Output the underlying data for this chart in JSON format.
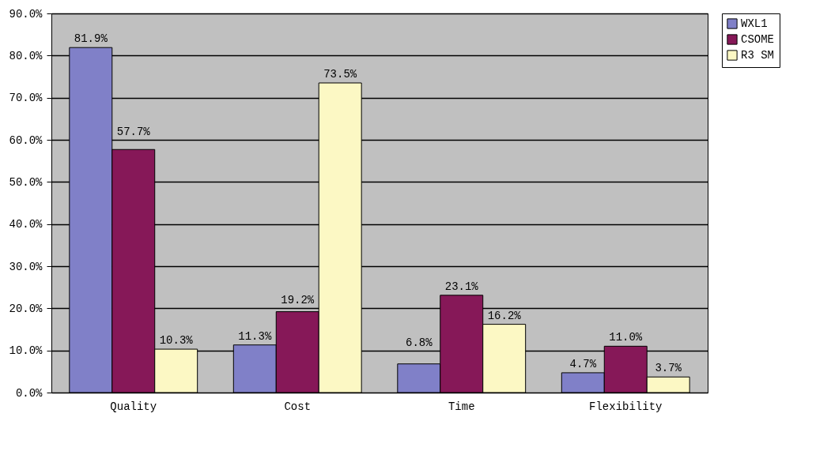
{
  "chart_data": {
    "type": "bar",
    "categories": [
      "Quality",
      "Cost",
      "Time",
      "Flexibility"
    ],
    "series": [
      {
        "name": "WXL1",
        "color": "#8080c8",
        "values": [
          81.9,
          11.3,
          6.8,
          4.7
        ],
        "value_labels": [
          "81.9%",
          "11.3%",
          "6.8%",
          "4.7%"
        ]
      },
      {
        "name": "CSOME",
        "color": "#861858",
        "values": [
          57.7,
          19.2,
          23.1,
          11.0
        ],
        "value_labels": [
          "57.7%",
          "19.2%",
          "23.1%",
          "11.0%"
        ]
      },
      {
        "name": "R3 SM",
        "color": "#fcf8c4",
        "values": [
          10.3,
          73.5,
          16.2,
          3.7
        ],
        "value_labels": [
          "10.3%",
          "73.5%",
          "16.2%",
          "3.7%"
        ]
      }
    ],
    "ylim": [
      0,
      90
    ],
    "yticks": [
      {
        "value": 0,
        "label": "0.0%"
      },
      {
        "value": 10,
        "label": "10.0%"
      },
      {
        "value": 20,
        "label": "20.0%"
      },
      {
        "value": 30,
        "label": "30.0%"
      },
      {
        "value": 40,
        "label": "40.0%"
      },
      {
        "value": 50,
        "label": "50.0%"
      },
      {
        "value": 60,
        "label": "60.0%"
      },
      {
        "value": 70,
        "label": "70.0%"
      },
      {
        "value": 80,
        "label": "80.0%"
      },
      {
        "value": 90,
        "label": "90.0%"
      }
    ],
    "grid": "y",
    "legend": "right"
  }
}
